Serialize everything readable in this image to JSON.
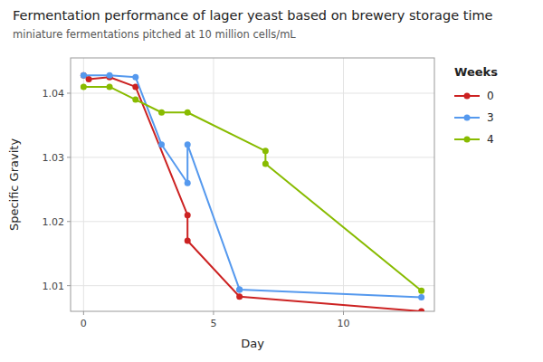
{
  "chart_data": {
    "type": "line",
    "title": "Fermentation performance of lager yeast based on brewery storage time",
    "subtitle": "miniature fermentations pitched at 10 million cells/mL",
    "x_label": "Day",
    "y_label": "Specific Gravity",
    "xlim": [
      -0.5,
      13.5
    ],
    "ylim": [
      1.006,
      1.0455
    ],
    "xticks": [
      0,
      5,
      10
    ],
    "yticks": [
      1.01,
      1.02,
      1.03,
      1.04
    ],
    "grid": true,
    "legend": "right",
    "legend_title": "Weeks",
    "marker": "circle",
    "series": [
      {
        "name": "0",
        "color": "#cc2222",
        "x": [
          0,
          0.2,
          1,
          2,
          4,
          4,
          6,
          13
        ],
        "values": [
          1.0428,
          1.0422,
          1.0425,
          1.041,
          1.021,
          1.017,
          1.0083,
          1.006
        ]
      },
      {
        "name": "3",
        "color": "#5599ee",
        "x": [
          0,
          1,
          2,
          3,
          4,
          4,
          6,
          6,
          13
        ],
        "values": [
          1.0428,
          1.0428,
          1.0425,
          1.032,
          1.026,
          1.032,
          1.0094,
          1.0094,
          1.0082
        ]
      },
      {
        "name": "4",
        "color": "#88bb00",
        "x": [
          0,
          1,
          2,
          3,
          4,
          7,
          7,
          13
        ],
        "values": [
          1.041,
          1.041,
          1.039,
          1.037,
          1.037,
          1.031,
          1.029,
          1.0092
        ]
      }
    ]
  }
}
